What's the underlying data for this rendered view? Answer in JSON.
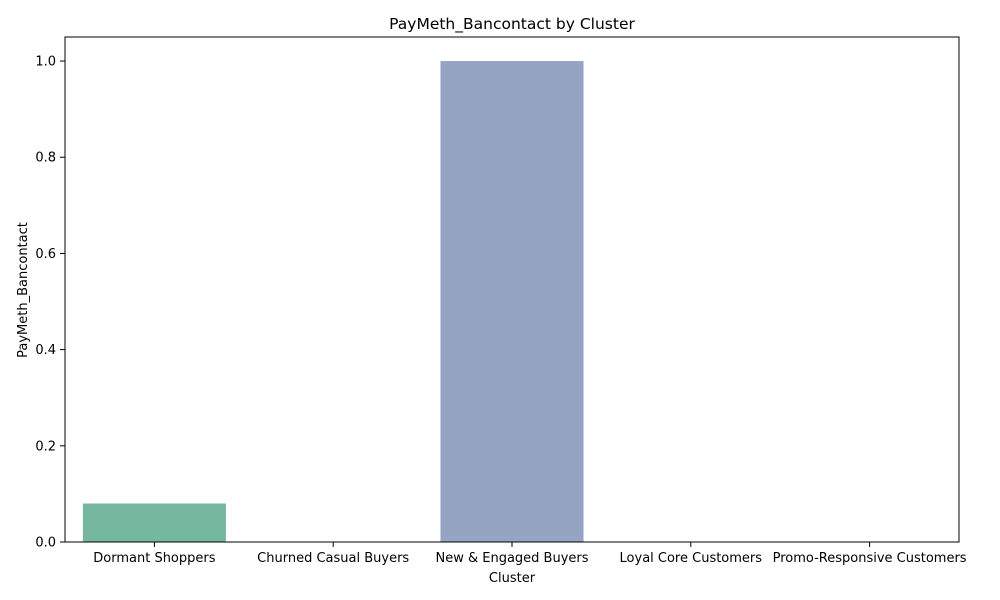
{
  "chart_data": {
    "type": "bar",
    "title": "PayMeth_Bancontact by Cluster",
    "xlabel": "Cluster",
    "ylabel": "PayMeth_Bancontact",
    "categories": [
      "Dormant Shoppers",
      "Churned Casual Buyers",
      "New & Engaged Buyers",
      "Loyal Core Customers",
      "Promo-Responsive Customers"
    ],
    "values": [
      0.08,
      0.0,
      1.0,
      0.0,
      0.0
    ],
    "colors": [
      "#76b7a0",
      "#f1a07e",
      "#94a4c2",
      "#e49ac3",
      "#a7d160"
    ],
    "ylim": [
      0,
      1.05
    ],
    "yticks": [
      "0.0",
      "0.2",
      "0.4",
      "0.6",
      "0.8",
      "1.0"
    ],
    "grid": false,
    "legend": "none"
  }
}
